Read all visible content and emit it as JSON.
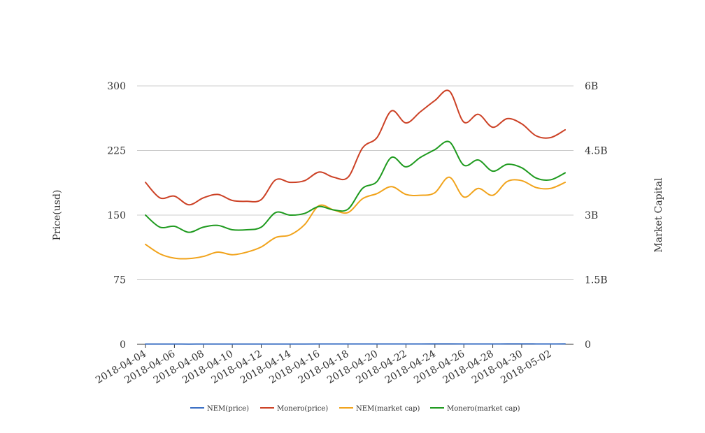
{
  "chart_data": {
    "type": "line",
    "title": "",
    "xlabel": "",
    "ylabel": "Price(usd)",
    "y2label": "Market Capital",
    "ylim": [
      0,
      300
    ],
    "y2lim": [
      0,
      6000000000
    ],
    "yticks": [
      "0",
      "75",
      "150",
      "225",
      "300"
    ],
    "y2ticks": [
      "0",
      "1.5B",
      "3B",
      "4.5B",
      "6B"
    ],
    "grid": true,
    "legend_position": "bottom",
    "x": [
      "2018-04-04",
      "2018-04-05",
      "2018-04-06",
      "2018-04-07",
      "2018-04-08",
      "2018-04-09",
      "2018-04-10",
      "2018-04-11",
      "2018-04-12",
      "2018-04-13",
      "2018-04-14",
      "2018-04-15",
      "2018-04-16",
      "2018-04-17",
      "2018-04-18",
      "2018-04-19",
      "2018-04-20",
      "2018-04-21",
      "2018-04-22",
      "2018-04-23",
      "2018-04-24",
      "2018-04-25",
      "2018-04-26",
      "2018-04-27",
      "2018-04-28",
      "2018-04-29",
      "2018-04-30",
      "2018-05-01",
      "2018-05-02",
      "2018-05-03"
    ],
    "xtick_labels": [
      "2018-04-04",
      "2018-04-06",
      "2018-04-08",
      "2018-04-10",
      "2018-04-12",
      "2018-04-14",
      "2018-04-16",
      "2018-04-18",
      "2018-04-20",
      "2018-04-22",
      "2018-04-24",
      "2018-04-26",
      "2018-04-28",
      "2018-04-30",
      "2018-05-02"
    ],
    "series": [
      {
        "name": "NEM(price)",
        "axis": "left",
        "color": "#3a6fc4",
        "values": [
          0.28,
          0.27,
          0.26,
          0.25,
          0.26,
          0.27,
          0.26,
          0.27,
          0.28,
          0.3,
          0.31,
          0.32,
          0.38,
          0.37,
          0.37,
          0.43,
          0.44,
          0.43,
          0.43,
          0.44,
          0.46,
          0.46,
          0.42,
          0.44,
          0.43,
          0.46,
          0.47,
          0.45,
          0.44,
          0.46
        ]
      },
      {
        "name": "Monero(price)",
        "axis": "left",
        "color": "#cc4125",
        "values": [
          188,
          170,
          172,
          162,
          170,
          174,
          167,
          166,
          168,
          191,
          188,
          190,
          200,
          194,
          194,
          228,
          240,
          271,
          257,
          270,
          283,
          294,
          258,
          267,
          252,
          262,
          256,
          242,
          240,
          249
        ]
      },
      {
        "name": "NEM(market cap)",
        "axis": "right",
        "color": "#f1a31b",
        "values": [
          2320000000,
          2100000000,
          2000000000,
          1990000000,
          2040000000,
          2140000000,
          2080000000,
          2140000000,
          2260000000,
          2480000000,
          2540000000,
          2780000000,
          3220000000,
          3120000000,
          3060000000,
          3380000000,
          3500000000,
          3660000000,
          3480000000,
          3460000000,
          3520000000,
          3880000000,
          3420000000,
          3620000000,
          3460000000,
          3780000000,
          3800000000,
          3640000000,
          3620000000,
          3760000000
        ]
      },
      {
        "name": "Monero(market cap)",
        "axis": "right",
        "color": "#1e9a1e",
        "values": [
          3000000000,
          2720000000,
          2740000000,
          2600000000,
          2720000000,
          2760000000,
          2660000000,
          2660000000,
          2720000000,
          3060000000,
          3000000000,
          3040000000,
          3200000000,
          3120000000,
          3140000000,
          3620000000,
          3780000000,
          4340000000,
          4120000000,
          4340000000,
          4520000000,
          4700000000,
          4160000000,
          4280000000,
          4020000000,
          4180000000,
          4100000000,
          3860000000,
          3820000000,
          3980000000
        ]
      }
    ]
  }
}
